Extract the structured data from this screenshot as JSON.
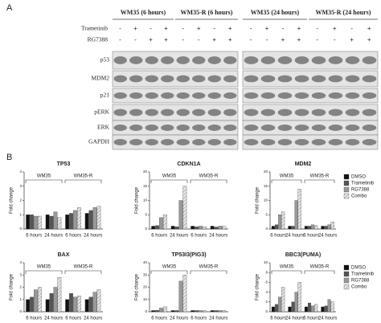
{
  "panel_a": {
    "label": "A",
    "groups": [
      "WM35 (6 hours)",
      "WM35-R (6 hours)",
      "WM35 (24 hours)",
      "WM35-R (24 hours)"
    ],
    "treatments": [
      {
        "name": "Trametinib",
        "signs": [
          "-",
          "+",
          "-",
          "+"
        ]
      },
      {
        "name": "RG7388",
        "signs": [
          "-",
          "-",
          "+",
          "+"
        ]
      }
    ],
    "proteins": [
      "p53",
      "MDM2",
      "p21",
      "pERK",
      "ERK",
      "GAPDH"
    ]
  },
  "panel_b_label": "B",
  "chart_data": [
    {
      "type": "bar",
      "title": "TP53",
      "y_label": "Fold change",
      "categories": [
        "6 hours",
        "24 hours",
        "6 hours",
        "24 hours"
      ],
      "cell_lines": [
        "WM35",
        "WM35-R"
      ],
      "ylim": [
        0,
        4
      ],
      "yticks": [
        0,
        1,
        2,
        3,
        4
      ],
      "series": [
        {
          "name": "DMSO",
          "color": "#111111",
          "values": [
            1,
            1,
            1,
            1.1
          ]
        },
        {
          "name": "Trametinib",
          "color": "#555555",
          "values": [
            1,
            0.9,
            1.1,
            1.3
          ]
        },
        {
          "name": "RG7388",
          "color": "#999999",
          "values": [
            0.9,
            1.2,
            1.3,
            1.5
          ]
        },
        {
          "name": "Combo",
          "color": "#dddddd",
          "values": [
            0.9,
            0.8,
            1.5,
            1.6
          ]
        }
      ]
    },
    {
      "type": "bar",
      "title": "CDKN1A",
      "y_label": "Fold change",
      "categories": [
        "6 hours",
        "24 hours",
        "6 hours",
        "24 hours"
      ],
      "cell_lines": [
        "WM35",
        "WM35-R"
      ],
      "ylim": [
        0,
        20
      ],
      "yticks": [
        0,
        5,
        10,
        15,
        20
      ],
      "series": [
        {
          "name": "DMSO",
          "color": "#111111",
          "values": [
            1,
            1,
            1,
            1
          ]
        },
        {
          "name": "Trametinib",
          "color": "#555555",
          "values": [
            1.2,
            0.8,
            0.8,
            0.7
          ]
        },
        {
          "name": "RG7388",
          "color": "#999999",
          "values": [
            4,
            10,
            1,
            1
          ]
        },
        {
          "name": "Combo",
          "color": "#dddddd",
          "values": [
            5,
            15,
            0.8,
            0.9
          ]
        }
      ]
    },
    {
      "type": "bar",
      "title": "MDM2",
      "y_label": "Fold change",
      "categories": [
        "6 hours",
        "24 hours",
        "6 hours",
        "24 hours"
      ],
      "cell_lines": [
        "WM35",
        "WM35-R"
      ],
      "ylim": [
        0,
        20
      ],
      "yticks": [
        0,
        5,
        10,
        15,
        20
      ],
      "legend": "right",
      "series": [
        {
          "name": "DMSO",
          "color": "#111111",
          "values": [
            1,
            1,
            1,
            1
          ]
        },
        {
          "name": "Trametinib",
          "color": "#555555",
          "values": [
            1.5,
            1,
            1,
            1
          ]
        },
        {
          "name": "RG7388",
          "color": "#999999",
          "values": [
            5,
            10,
            1.5,
            1.5
          ]
        },
        {
          "name": "Combo",
          "color": "#dddddd",
          "values": [
            6,
            14,
            1.2,
            2.5
          ]
        }
      ]
    },
    {
      "type": "bar",
      "title": "BAX",
      "y_label": "Fold change",
      "categories": [
        "6 hours",
        "24 hours",
        "6 hours",
        "24 hours"
      ],
      "cell_lines": [
        "WM35",
        "WM35-R"
      ],
      "ylim": [
        0,
        4
      ],
      "yticks": [
        0,
        1,
        2,
        3,
        4
      ],
      "series": [
        {
          "name": "DMSO",
          "color": "#111111",
          "values": [
            1,
            1,
            1,
            1
          ]
        },
        {
          "name": "Trametinib",
          "color": "#555555",
          "values": [
            1.2,
            1.5,
            1.5,
            1.2
          ]
        },
        {
          "name": "RG7388",
          "color": "#999999",
          "values": [
            1.8,
            2,
            1.2,
            1.6
          ]
        },
        {
          "name": "Combo",
          "color": "#dddddd",
          "values": [
            2,
            2.8,
            1.3,
            1.8
          ]
        }
      ]
    },
    {
      "type": "bar",
      "title": "TP53I3(PIG3)",
      "y_label": "Fold change",
      "categories": [
        "6 hours",
        "24 hours",
        "6 hours",
        "24 hours"
      ],
      "cell_lines": [
        "WM35",
        "WM35-R"
      ],
      "ylim": [
        0,
        40
      ],
      "yticks": [
        0,
        10,
        20,
        30,
        40
      ],
      "series": [
        {
          "name": "DMSO",
          "color": "#111111",
          "values": [
            1,
            1,
            1,
            1
          ]
        },
        {
          "name": "Trametinib",
          "color": "#555555",
          "values": [
            1.2,
            1,
            1,
            1
          ]
        },
        {
          "name": "RG7388",
          "color": "#999999",
          "values": [
            3,
            25,
            1,
            1
          ]
        },
        {
          "name": "Combo",
          "color": "#dddddd",
          "values": [
            4,
            30,
            1,
            1
          ]
        }
      ]
    },
    {
      "type": "bar",
      "title": "BBC3(PUMA)",
      "y_label": "Fold change",
      "categories": [
        "6 hours",
        "24 hours",
        "6 hours",
        "24 hours"
      ],
      "cell_lines": [
        "WM35",
        "WM35-R"
      ],
      "ylim": [
        0,
        10
      ],
      "yticks": [
        0,
        2,
        4,
        6,
        8,
        10
      ],
      "legend": "right",
      "series": [
        {
          "name": "DMSO",
          "color": "#111111",
          "values": [
            1,
            1,
            1,
            1
          ]
        },
        {
          "name": "Trametinib",
          "color": "#555555",
          "values": [
            1.5,
            2,
            1.8,
            1.2
          ]
        },
        {
          "name": "RG7388",
          "color": "#999999",
          "values": [
            3,
            4,
            1.2,
            2.5
          ]
        },
        {
          "name": "Combo",
          "color": "#dddddd",
          "values": [
            5,
            6,
            1.5,
            2
          ]
        }
      ]
    }
  ]
}
